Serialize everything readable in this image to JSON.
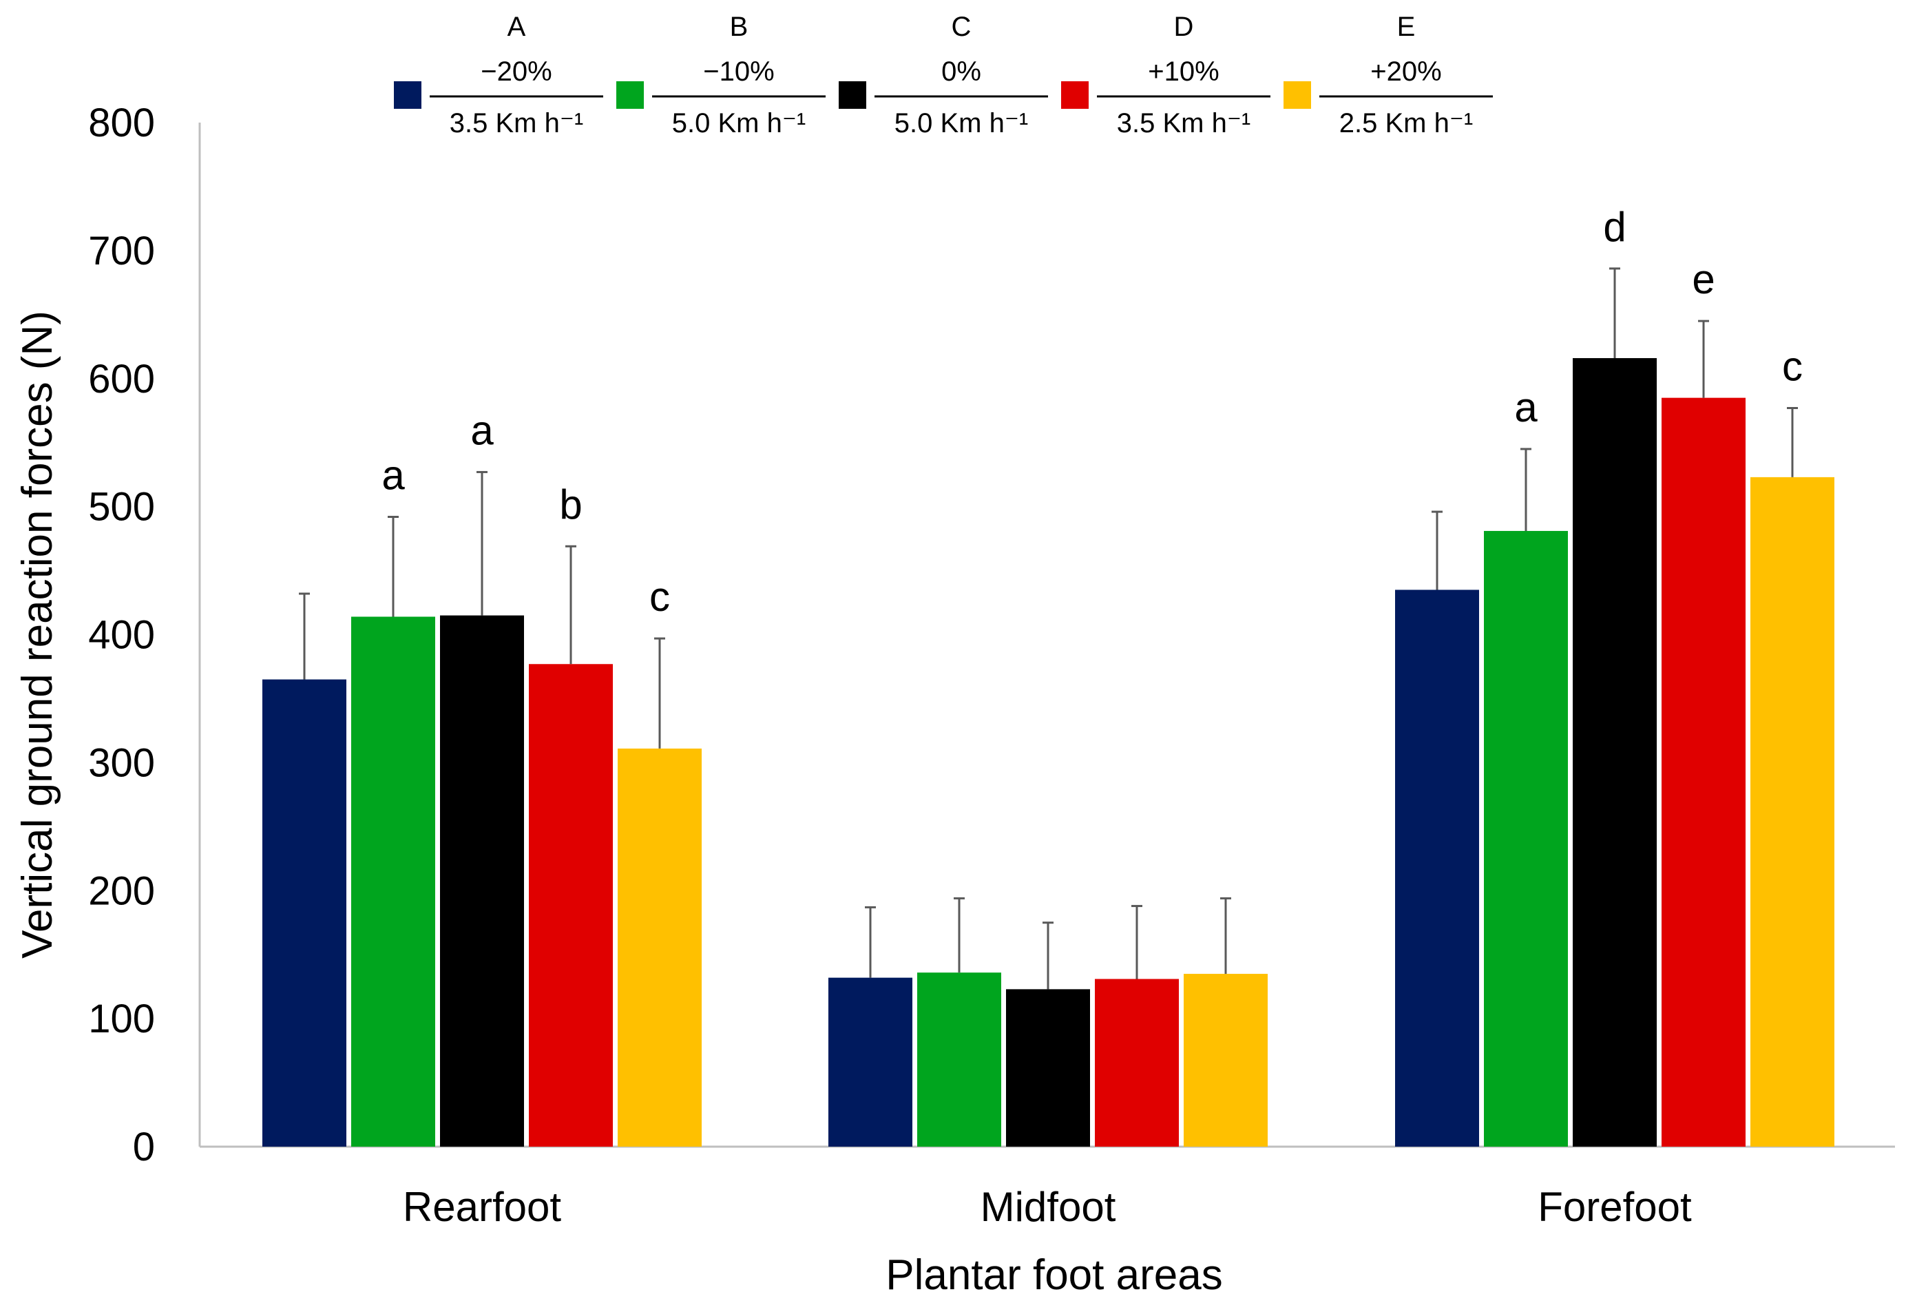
{
  "chart_data": {
    "type": "bar",
    "title": "",
    "xlabel": "Plantar foot areas",
    "ylabel": "Vertical ground reaction forces (N)",
    "ylim": [
      0,
      800
    ],
    "yticks": [
      0,
      100,
      200,
      300,
      400,
      500,
      600,
      700,
      800
    ],
    "ytick_labels": [
      "0",
      "100",
      "200",
      "300",
      "400",
      "500",
      "600",
      "700",
      "800"
    ],
    "grid": false,
    "legend_position": "top",
    "categories": [
      "Rearfoot",
      "Midfoot",
      "Forefoot"
    ],
    "series": [
      {
        "name": "A",
        "legend": {
          "letter": "A",
          "grade": "−20%",
          "speed": "3.5 Km h⁻¹"
        },
        "color": "#001a5e",
        "values": [
          365,
          132,
          435
        ],
        "error": [
          67,
          55,
          61
        ],
        "labels": [
          "",
          "",
          ""
        ]
      },
      {
        "name": "B",
        "legend": {
          "letter": "B",
          "grade": "−10%",
          "speed": "5.0 Km h⁻¹"
        },
        "color": "#00a51e",
        "values": [
          414,
          136,
          481
        ],
        "error": [
          78,
          58,
          64
        ],
        "labels": [
          "a",
          "",
          "a"
        ]
      },
      {
        "name": "C",
        "legend": {
          "letter": "C",
          "grade": "0%",
          "speed": "5.0 Km h⁻¹"
        },
        "color": "#000000",
        "values": [
          415,
          123,
          616
        ],
        "error": [
          112,
          52,
          70
        ],
        "labels": [
          "a",
          "",
          "d"
        ]
      },
      {
        "name": "D",
        "legend": {
          "letter": "D",
          "grade": "+10%",
          "speed": "3.5 Km h⁻¹"
        },
        "color": "#e00000",
        "values": [
          377,
          131,
          585
        ],
        "error": [
          92,
          57,
          60
        ],
        "labels": [
          "b",
          "",
          "e"
        ]
      },
      {
        "name": "E",
        "legend": {
          "letter": "E",
          "grade": "+20%",
          "speed": "2.5 Km h⁻¹"
        },
        "color": "#ffc000",
        "values": [
          311,
          135,
          523
        ],
        "error": [
          86,
          59,
          54
        ],
        "labels": [
          "c",
          "",
          "c"
        ]
      }
    ]
  }
}
